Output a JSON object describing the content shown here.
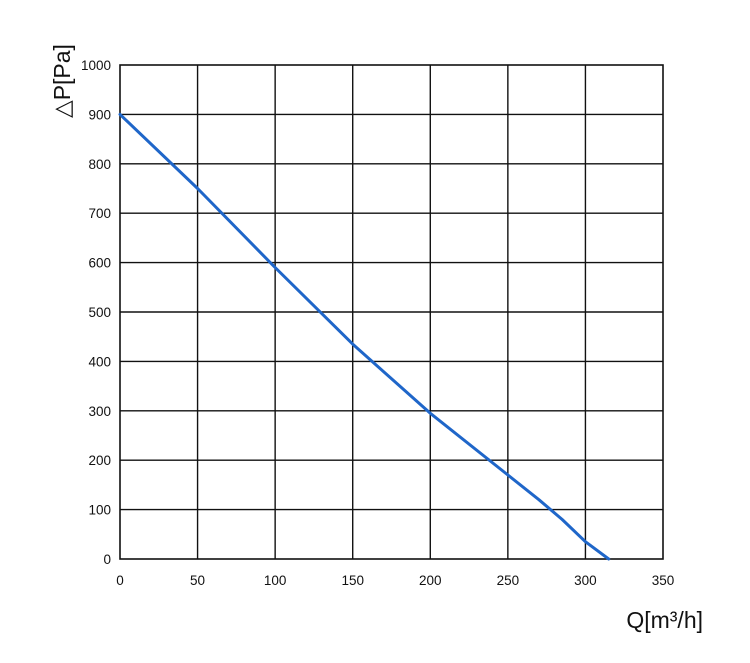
{
  "chart_data": {
    "type": "line",
    "title": "",
    "xlabel": "Q[m³/h]",
    "ylabel": "△P[Pa]",
    "xlim": [
      0,
      350
    ],
    "ylim": [
      0,
      1000
    ],
    "x_ticks": [
      0,
      50,
      100,
      150,
      200,
      250,
      300,
      350
    ],
    "y_ticks": [
      0,
      100,
      200,
      300,
      400,
      500,
      600,
      700,
      800,
      900,
      1000
    ],
    "grid": true,
    "legend": "none",
    "series": [
      {
        "color": "#1f66c9",
        "x": [
          0,
          50,
          100,
          150,
          200,
          250,
          270,
          285,
          300,
          315
        ],
        "y": [
          900,
          750,
          590,
          435,
          295,
          170,
          120,
          80,
          35,
          0
        ]
      }
    ]
  }
}
